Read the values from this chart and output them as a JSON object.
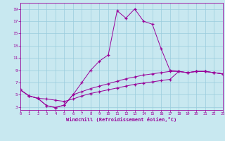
{
  "bg_color": "#c8e8f0",
  "line_color": "#990099",
  "grid_color": "#99ccdd",
  "xlim": [
    0,
    23
  ],
  "ylim": [
    2.5,
    20.0
  ],
  "xticks": [
    0,
    1,
    2,
    3,
    4,
    5,
    6,
    7,
    8,
    9,
    10,
    11,
    12,
    13,
    14,
    15,
    16,
    17,
    18,
    19,
    20,
    21,
    22,
    23
  ],
  "yticks": [
    3,
    5,
    7,
    9,
    11,
    13,
    15,
    17,
    19
  ],
  "xlabel": "Windchill (Refroidissement éolien,°C)",
  "curve_main_x": [
    0,
    1,
    2,
    3,
    4,
    5,
    6,
    7,
    8,
    9,
    10,
    11,
    12,
    13,
    14,
    15,
    16,
    17,
    18,
    19,
    20,
    21,
    22,
    23
  ],
  "curve_main_y": [
    5.8,
    4.8,
    4.4,
    3.2,
    2.9,
    3.3,
    5.0,
    7.0,
    9.0,
    10.5,
    11.5,
    18.7,
    17.5,
    19.0,
    17.0,
    16.5,
    12.5,
    9.0,
    8.8,
    8.6,
    8.8,
    8.8,
    8.6,
    8.4
  ],
  "curve_mid_x": [
    0,
    1,
    2,
    3,
    4,
    5,
    6,
    7,
    8,
    9,
    10,
    11,
    12,
    13,
    14,
    15,
    16,
    17,
    18,
    19,
    20,
    21,
    22,
    23
  ],
  "curve_mid_y": [
    5.8,
    4.8,
    4.4,
    3.2,
    2.9,
    3.3,
    5.0,
    5.5,
    6.0,
    6.4,
    6.8,
    7.2,
    7.6,
    7.9,
    8.2,
    8.4,
    8.6,
    8.8,
    8.8,
    8.6,
    8.8,
    8.8,
    8.6,
    8.4
  ],
  "curve_low_x": [
    0,
    1,
    2,
    3,
    4,
    5,
    6,
    7,
    8,
    9,
    10,
    11,
    12,
    13,
    14,
    15,
    16,
    17,
    18,
    19,
    20,
    21,
    22,
    23
  ],
  "curve_low_y": [
    5.8,
    4.8,
    4.4,
    4.3,
    4.1,
    3.9,
    4.3,
    4.8,
    5.2,
    5.5,
    5.8,
    6.1,
    6.4,
    6.7,
    6.9,
    7.1,
    7.3,
    7.5,
    8.8,
    8.6,
    8.8,
    8.8,
    8.6,
    8.4
  ]
}
